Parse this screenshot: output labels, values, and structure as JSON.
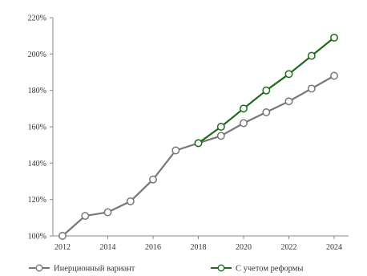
{
  "chart_data": {
    "type": "line",
    "title": "",
    "xlabel": "",
    "ylabel": "",
    "x": [
      2012,
      2013,
      2014,
      2015,
      2016,
      2017,
      2018,
      2019,
      2020,
      2021,
      2022,
      2023,
      2024
    ],
    "x_tick_labels": [
      "2012",
      "2014",
      "2016",
      "2018",
      "2020",
      "2022",
      "2024"
    ],
    "x_tick_values": [
      2012,
      2014,
      2016,
      2018,
      2020,
      2022,
      2024
    ],
    "y_tick_labels": [
      "100%",
      "120%",
      "140%",
      "160%",
      "180%",
      "200%",
      "220%"
    ],
    "y_tick_values": [
      100,
      120,
      140,
      160,
      180,
      200,
      220
    ],
    "ylim": [
      100,
      220
    ],
    "xlim": [
      2012,
      2024
    ],
    "grid": false,
    "legend_position": "bottom",
    "series": [
      {
        "name": "Инерционный вариант",
        "color": "#777777",
        "x": [
          2012,
          2013,
          2014,
          2015,
          2016,
          2017,
          2018,
          2019,
          2020,
          2021,
          2022,
          2023,
          2024
        ],
        "values": [
          100,
          111,
          113,
          119,
          131,
          147,
          151,
          155,
          162,
          168,
          174,
          181,
          188
        ]
      },
      {
        "name": "С учетом реформы",
        "color": "#1f6b1f",
        "x": [
          2018,
          2019,
          2020,
          2021,
          2022,
          2023,
          2024
        ],
        "values": [
          151,
          160,
          170,
          180,
          189,
          199,
          209
        ]
      }
    ]
  }
}
